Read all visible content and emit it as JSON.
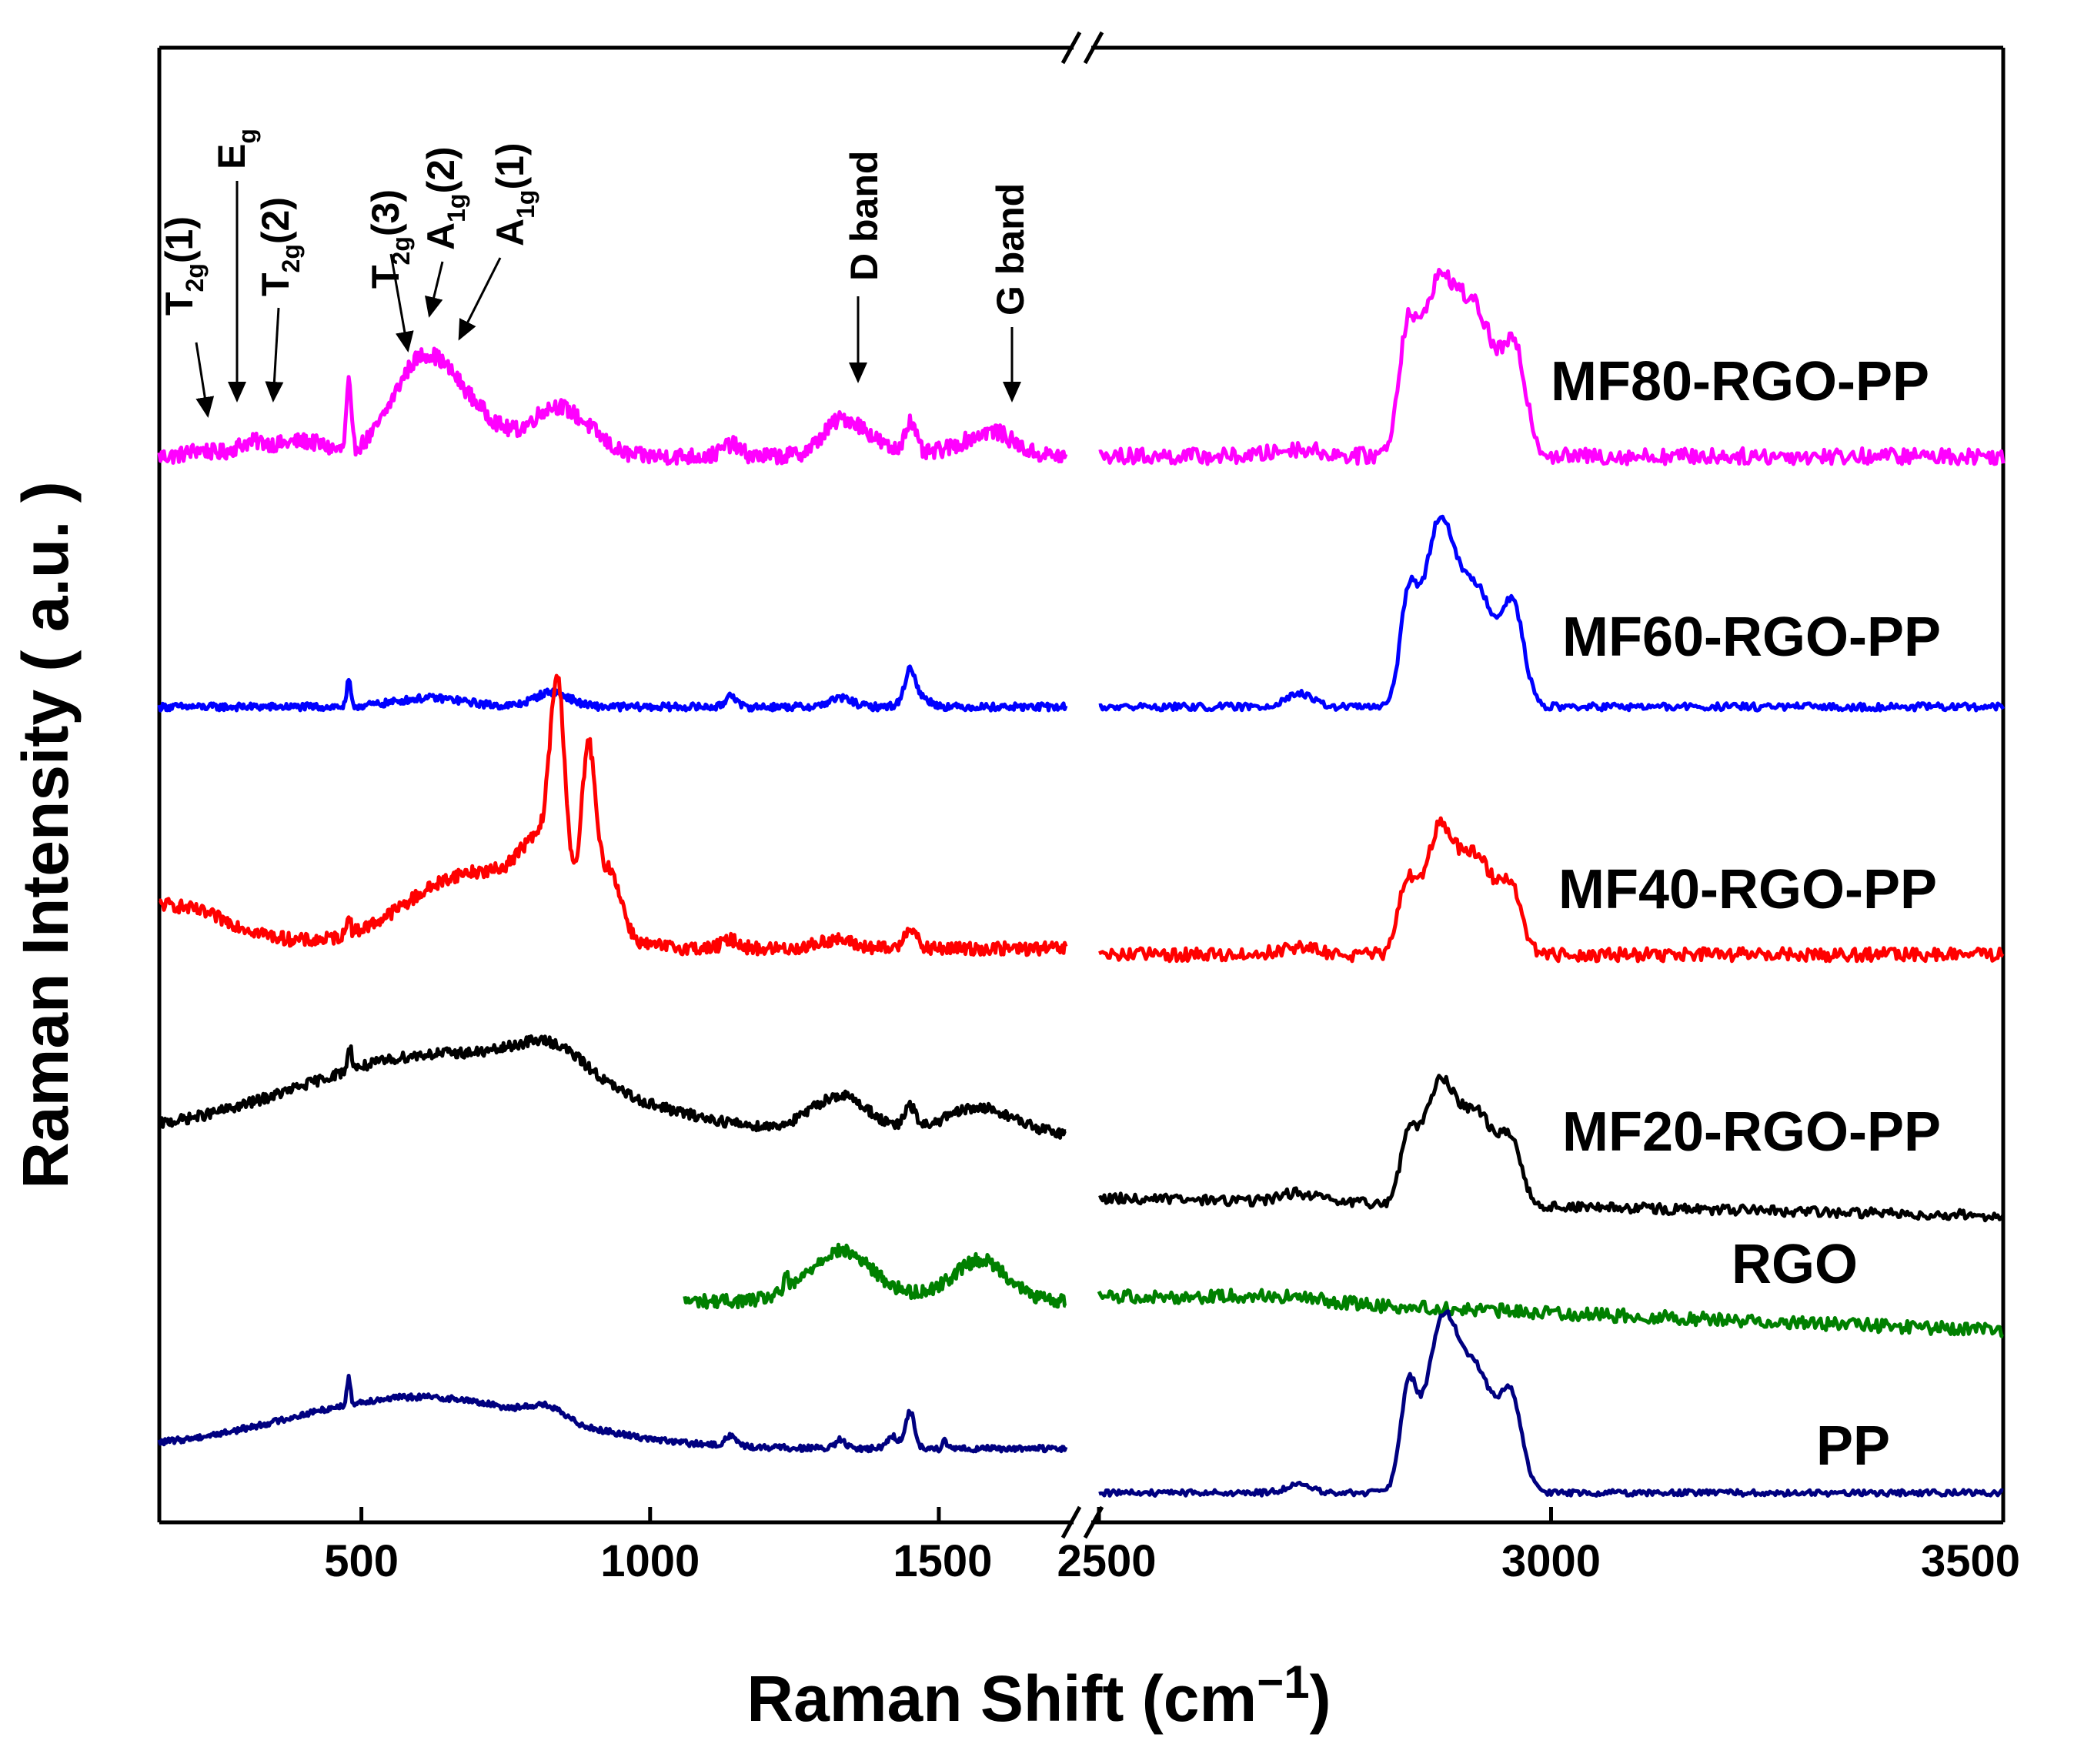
{
  "chart_data": {
    "type": "line",
    "title": "",
    "xlabel": "Raman Shift (cm",
    "xlabel_exponent": "−1",
    "xlabel_close": ")",
    "ylabel": "Raman Intensity ( a.u. )",
    "y_ticks_shown": false,
    "broken_x_axis": true,
    "x_segments": [
      {
        "xlim": [
          150,
          1720
        ],
        "ticks": [
          500,
          1000,
          1500
        ],
        "tick_labels": [
          "500",
          "1000",
          "1500"
        ]
      },
      {
        "xlim": [
          2500,
          3500
        ],
        "ticks": [
          2500,
          3000,
          3500
        ],
        "tick_labels": [
          "2500",
          "3000",
          "3500"
        ]
      }
    ],
    "ylim": [
      0,
      100
    ],
    "series": [
      {
        "name": "MF80-RGO-PP",
        "color": "#ff00ff",
        "baseline_left": 72.3,
        "tilt_left": 0,
        "baseline_right": 72.3,
        "tilt_right": 0,
        "noise": 0.55,
        "left_range": [
          150,
          1720
        ],
        "left_peaks": [
          [
            220,
            0.4,
            20
          ],
          [
            310,
            0.9,
            30
          ],
          [
            400,
            1.0,
            40
          ],
          [
            478,
            4.5,
            4
          ],
          [
            600,
            5.5,
            50
          ],
          [
            680,
            3.0,
            60
          ],
          [
            835,
            3.2,
            40
          ],
          [
            900,
            1.0,
            30
          ],
          [
            1140,
            0.8,
            15
          ],
          [
            1320,
            0.8,
            25
          ],
          [
            1350,
            2.0,
            40
          ],
          [
            1450,
            2.2,
            10
          ],
          [
            1570,
            1.0,
            50
          ],
          [
            1600,
            0.8,
            30
          ]
        ],
        "right_peaks": [
          [
            2720,
            0.5,
            25
          ],
          [
            2840,
            6.0,
            9
          ],
          [
            2875,
            11.5,
            22
          ],
          [
            2920,
            8.5,
            20
          ],
          [
            2960,
            6.5,
            13
          ]
        ]
      },
      {
        "name": "MF60-RGO-PP",
        "color": "#0000ff",
        "baseline_left": 55.3,
        "tilt_left": 0,
        "baseline_right": 55.3,
        "tilt_right": 0,
        "noise": 0.25,
        "left_range": [
          150,
          1720
        ],
        "left_peaks": [
          [
            478,
            1.8,
            3
          ],
          [
            620,
            0.6,
            60
          ],
          [
            830,
            1.0,
            30
          ],
          [
            1140,
            0.9,
            8
          ],
          [
            1330,
            0.6,
            20
          ],
          [
            1450,
            2.0,
            8
          ],
          [
            1460,
            0.8,
            20
          ]
        ],
        "right_peaks": [
          [
            2720,
            0.9,
            15
          ],
          [
            2842,
            6.5,
            9
          ],
          [
            2877,
            12.5,
            18
          ],
          [
            2920,
            7.5,
            18
          ],
          [
            2958,
            6.5,
            12
          ]
        ]
      },
      {
        "name": "MF40-RGO-PP",
        "color": "#ff0000",
        "baseline_left": 38.9,
        "tilt_left": 0,
        "baseline_right": 38.5,
        "tilt_right": 0,
        "noise": 0.45,
        "left_range": [
          150,
          1720
        ],
        "left_peaks": [
          [
            150,
            3.0,
            120
          ],
          [
            478,
            1.5,
            3
          ],
          [
            700,
            5.2,
            120
          ],
          [
            840,
            13.0,
            13
          ],
          [
            893,
            11.5,
            12
          ],
          [
            810,
            4.0,
            35
          ],
          [
            930,
            4.5,
            20
          ],
          [
            1140,
            0.6,
            15
          ],
          [
            1320,
            0.6,
            30
          ],
          [
            1450,
            1.5,
            10
          ]
        ],
        "right_peaks": [
          [
            2720,
            0.5,
            20
          ],
          [
            2840,
            4.3,
            9
          ],
          [
            2877,
            8.5,
            18
          ],
          [
            2920,
            6.2,
            18
          ],
          [
            2956,
            4.2,
            12
          ]
        ]
      },
      {
        "name": "MF20-RGO-PP",
        "color": "#000000",
        "baseline_left": 26.3,
        "tilt_left": 0.0016,
        "baseline_right": 22.0,
        "tilt_right": -0.0012,
        "noise": 0.35,
        "left_range": [
          150,
          1720
        ],
        "left_peaks": [
          [
            480,
            1.5,
            4
          ],
          [
            650,
            5.5,
            250
          ],
          [
            830,
            2.0,
            60
          ],
          [
            1330,
            2.5,
            50
          ],
          [
            1450,
            1.5,
            10
          ],
          [
            1570,
            1.8,
            60
          ]
        ],
        "right_peaks": [
          [
            2720,
            0.6,
            20
          ],
          [
            2842,
            4.0,
            9
          ],
          [
            2877,
            8.2,
            18
          ],
          [
            2920,
            6.0,
            18
          ],
          [
            2956,
            4.0,
            12
          ]
        ]
      },
      {
        "name": "RGO",
        "color": "#008000",
        "baseline_left": 15.0,
        "tilt_left": 0,
        "baseline_right": 15.4,
        "tilt_right": -0.0024,
        "noise": 0.45,
        "left_range": [
          1060,
          1720
        ],
        "left_peaks": [
          [
            1330,
            3.4,
            55
          ],
          [
            1575,
            2.6,
            45
          ],
          [
            1500,
            0.4,
            60
          ],
          [
            1235,
            1.2,
            3
          ]
        ],
        "right_peaks": [
          [
            2690,
            0.4,
            60
          ]
        ]
      },
      {
        "name": "PP",
        "color": "#000080",
        "baseline_left": 5.0,
        "tilt_left": 0,
        "baseline_right": 2.0,
        "tilt_right": 0,
        "noise": 0.2,
        "left_range": [
          150,
          1720
        ],
        "left_peaks": [
          [
            600,
            3.5,
            220
          ],
          [
            478,
            1.8,
            3
          ],
          [
            820,
            0.8,
            30
          ],
          [
            1140,
            0.7,
            10
          ],
          [
            1330,
            0.6,
            8
          ],
          [
            1450,
            2.5,
            8
          ],
          [
            1420,
            0.8,
            10
          ],
          [
            1510,
            0.5,
            3
          ]
        ],
        "right_peaks": [
          [
            2720,
            0.5,
            15
          ],
          [
            2842,
            6.5,
            9
          ],
          [
            2880,
            11.5,
            18
          ],
          [
            2920,
            7.5,
            18
          ],
          [
            2956,
            6.0,
            12
          ]
        ]
      }
    ],
    "annotations": [
      {
        "name": "T2g1-annotation",
        "main": "T",
        "sub": "2g",
        "tail": "(1)",
        "x": 225
      },
      {
        "name": "Eg-annotation",
        "main": "E",
        "sub": "g",
        "tail": "",
        "x": 285
      },
      {
        "name": "T2g2-annotation",
        "main": "T",
        "sub": "2g",
        "tail": "(2)",
        "x": 350
      },
      {
        "name": "T2g3-annotation",
        "main": "T",
        "sub": "2g",
        "tail": "(3)",
        "x": 570
      },
      {
        "name": "A1g2-annotation",
        "main": "A",
        "sub": "1g",
        "tail": "(2)",
        "x": 610
      },
      {
        "name": "A1g1-annotation",
        "main": "A",
        "sub": "1g",
        "tail": "(1)",
        "x": 660
      },
      {
        "name": "D-band-annotation",
        "main": "D band",
        "sub": "",
        "tail": "",
        "x": 1340
      },
      {
        "name": "G-band-annotation",
        "main": "G band",
        "sub": "",
        "tail": "",
        "x": 1585
      }
    ]
  }
}
